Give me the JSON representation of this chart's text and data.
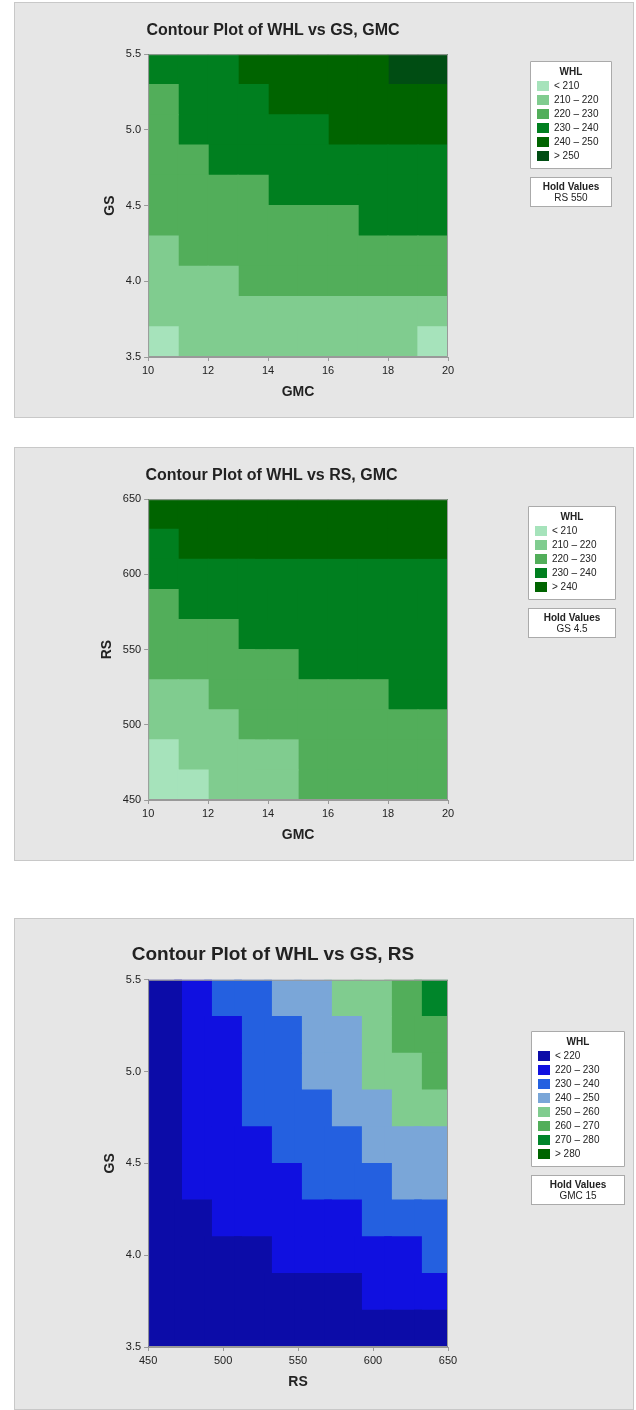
{
  "chart_data": [
    {
      "type": "scatter",
      "marker": "square",
      "title": "Contour Plot of WHL vs GS, GMC",
      "xlabel": "GMC",
      "ylabel": "GS",
      "legend_title": "WHL",
      "legend": "right",
      "grid": false,
      "xlim": [
        10,
        20
      ],
      "xticks": [
        10,
        12,
        14,
        16,
        18,
        20
      ],
      "ylim": [
        3.5,
        5.5
      ],
      "yticks": [
        {
          "value": 3.5,
          "label": "3.5"
        },
        {
          "value": 4,
          "label": "4.0"
        },
        {
          "value": 4.5,
          "label": "4.5"
        },
        {
          "value": 5,
          "label": "5.0"
        },
        {
          "value": 5.5,
          "label": "5.5"
        }
      ],
      "annotations": [
        "Hold Values",
        "RS 550"
      ],
      "series": [
        {
          "name": "< 210",
          "color": "#a6e3bb",
          "x": [
            10.5,
            19.5
          ],
          "values": [
            3.6,
            3.6
          ]
        },
        {
          "name": "210 – 220",
          "color": "#80cc8f",
          "x": [
            10.5,
            10.5,
            11.5,
            12.5,
            10.5,
            11.5,
            12.5,
            13.5,
            14.5,
            15.5,
            16.5,
            17.5,
            18.5,
            19.5,
            11.5,
            12.5,
            13.5,
            14.5,
            15.5,
            16.5,
            17.5,
            18.5
          ],
          "values": [
            4.2,
            4.0,
            4.0,
            4.0,
            3.8,
            3.8,
            3.8,
            3.8,
            3.8,
            3.8,
            3.8,
            3.8,
            3.8,
            3.8,
            3.6,
            3.6,
            3.6,
            3.6,
            3.6,
            3.6,
            3.6,
            3.6
          ]
        },
        {
          "name": "220 – 230",
          "color": "#52ae5a",
          "x": [
            10.5,
            10.5,
            10.5,
            11.5,
            10.5,
            11.5,
            12.5,
            13.5,
            10.5,
            11.5,
            12.5,
            13.5,
            14.5,
            15.5,
            16.5,
            11.5,
            12.5,
            13.5,
            14.5,
            15.5,
            16.5,
            17.5,
            18.5,
            19.5,
            13.5,
            14.5,
            15.5,
            16.5,
            17.5,
            18.5,
            19.5
          ],
          "values": [
            5.2,
            5.0,
            4.8,
            4.8,
            4.6,
            4.6,
            4.6,
            4.6,
            4.4,
            4.4,
            4.4,
            4.4,
            4.4,
            4.4,
            4.4,
            4.2,
            4.2,
            4.2,
            4.2,
            4.2,
            4.2,
            4.2,
            4.2,
            4.2,
            4.0,
            4.0,
            4.0,
            4.0,
            4.0,
            4.0,
            4.0
          ]
        },
        {
          "name": "230 – 240",
          "color": "#007f1f",
          "x": [
            10.5,
            11.5,
            12.5,
            11.5,
            12.5,
            13.5,
            11.5,
            12.5,
            13.5,
            14.5,
            15.5,
            12.5,
            13.5,
            14.5,
            15.5,
            16.5,
            17.5,
            18.5,
            19.5,
            14.5,
            15.5,
            16.5,
            17.5,
            18.5,
            19.5,
            17.5,
            18.5,
            19.5
          ],
          "values": [
            5.4,
            5.4,
            5.4,
            5.2,
            5.2,
            5.2,
            5.0,
            5.0,
            5.0,
            5.0,
            5.0,
            4.8,
            4.8,
            4.8,
            4.8,
            4.8,
            4.8,
            4.8,
            4.8,
            4.6,
            4.6,
            4.6,
            4.6,
            4.6,
            4.6,
            4.4,
            4.4,
            4.4
          ]
        },
        {
          "name": "240 – 250",
          "color": "#006400",
          "x": [
            13.5,
            14.5,
            15.5,
            16.5,
            17.5,
            14.5,
            15.5,
            16.5,
            17.5,
            18.5,
            19.5,
            16.5,
            17.5,
            18.5,
            19.5
          ],
          "values": [
            5.4,
            5.4,
            5.4,
            5.4,
            5.4,
            5.2,
            5.2,
            5.2,
            5.2,
            5.2,
            5.2,
            5.0,
            5.0,
            5.0,
            5.0
          ]
        },
        {
          "name": "> 250",
          "color": "#004d13",
          "x": [
            18.5,
            19.5
          ],
          "values": [
            5.4,
            5.4
          ]
        }
      ]
    },
    {
      "type": "scatter",
      "marker": "square",
      "title": "Contour Plot of WHL vs RS, GMC",
      "xlabel": "GMC",
      "ylabel": "RS",
      "legend_title": "WHL",
      "legend": "right",
      "grid": false,
      "xlim": [
        10,
        20
      ],
      "xticks": [
        10,
        12,
        14,
        16,
        18,
        20
      ],
      "ylim": [
        450,
        650
      ],
      "yticks": [
        450,
        500,
        550,
        600,
        650
      ],
      "annotations": [
        "Hold Values",
        "GS 4.5"
      ],
      "series": [
        {
          "name": "< 210",
          "color": "#a6e3bb",
          "x": [
            10.5,
            10.5,
            11.5
          ],
          "values": [
            480,
            460,
            460
          ]
        },
        {
          "name": "210 – 220",
          "color": "#80cc8f",
          "x": [
            10.5,
            11.5,
            10.5,
            11.5,
            12.5,
            11.5,
            12.5,
            13.5,
            14.5,
            12.5,
            13.5,
            14.5
          ],
          "values": [
            520,
            520,
            500,
            500,
            500,
            480,
            480,
            480,
            480,
            460,
            460,
            460
          ]
        },
        {
          "name": "220 – 230",
          "color": "#52ae5a",
          "x": [
            10.5,
            10.5,
            11.5,
            12.5,
            10.5,
            11.5,
            12.5,
            13.5,
            14.5,
            12.5,
            13.5,
            14.5,
            15.5,
            16.5,
            17.5,
            13.5,
            14.5,
            15.5,
            16.5,
            17.5,
            18.5,
            19.5,
            15.5,
            16.5,
            17.5,
            18.5,
            19.5,
            15.5,
            16.5,
            17.5,
            18.5,
            19.5
          ],
          "values": [
            580,
            560,
            560,
            560,
            540,
            540,
            540,
            540,
            540,
            520,
            520,
            520,
            520,
            520,
            520,
            500,
            500,
            500,
            500,
            500,
            500,
            500,
            480,
            480,
            480,
            480,
            480,
            460,
            460,
            460,
            460,
            460
          ]
        },
        {
          "name": "230 – 240",
          "color": "#007f1f",
          "x": [
            10.5,
            10.5,
            11.5,
            12.5,
            13.5,
            14.5,
            15.5,
            16.5,
            17.5,
            18.5,
            19.5,
            11.5,
            12.5,
            13.5,
            14.5,
            15.5,
            16.5,
            17.5,
            18.5,
            19.5,
            13.5,
            14.5,
            15.5,
            16.5,
            17.5,
            18.5,
            19.5,
            15.5,
            16.5,
            17.5,
            18.5,
            19.5,
            18.5,
            19.5
          ],
          "values": [
            620,
            600,
            600,
            600,
            600,
            600,
            600,
            600,
            600,
            600,
            600,
            580,
            580,
            580,
            580,
            580,
            580,
            580,
            580,
            580,
            560,
            560,
            560,
            560,
            560,
            560,
            560,
            540,
            540,
            540,
            540,
            540,
            520,
            520
          ]
        },
        {
          "name": "> 240",
          "color": "#006400",
          "x": [
            10.5,
            11.5,
            12.5,
            13.5,
            14.5,
            15.5,
            16.5,
            17.5,
            18.5,
            19.5,
            11.5,
            12.5,
            13.5,
            14.5,
            15.5,
            16.5,
            17.5,
            18.5,
            19.5
          ],
          "values": [
            640,
            640,
            640,
            640,
            640,
            640,
            640,
            640,
            640,
            640,
            620,
            620,
            620,
            620,
            620,
            620,
            620,
            620,
            620
          ]
        }
      ]
    },
    {
      "type": "scatter",
      "marker": "square",
      "title": "Contour Plot of WHL vs GS, RS",
      "xlabel": "RS",
      "ylabel": "GS",
      "legend_title": "WHL",
      "legend": "right",
      "grid": false,
      "xlim": [
        450,
        650
      ],
      "xticks": [
        450,
        500,
        550,
        600,
        650
      ],
      "ylim": [
        3.5,
        5.5
      ],
      "yticks": [
        {
          "value": 3.5,
          "label": "3.5"
        },
        {
          "value": 4,
          "label": "4.0"
        },
        {
          "value": 4.5,
          "label": "4.5"
        },
        {
          "value": 5,
          "label": "5.0"
        },
        {
          "value": 5.5,
          "label": "5.5"
        }
      ],
      "annotations": [
        "Hold Values",
        "GMC 15"
      ],
      "series": [
        {
          "name": "< 220",
          "color": "#0c0ca8",
          "x": [
            460,
            460,
            460,
            460,
            460,
            460,
            460,
            480,
            460,
            480,
            500,
            520,
            460,
            480,
            500,
            520,
            540,
            560,
            580,
            460,
            480,
            500,
            520,
            540,
            560,
            580,
            600,
            620,
            640
          ],
          "values": [
            5.4,
            5.2,
            5.0,
            4.8,
            4.6,
            4.4,
            4.2,
            4.2,
            4.0,
            4.0,
            4.0,
            4.0,
            3.8,
            3.8,
            3.8,
            3.8,
            3.8,
            3.8,
            3.8,
            3.6,
            3.6,
            3.6,
            3.6,
            3.6,
            3.6,
            3.6,
            3.6,
            3.6,
            3.6
          ]
        },
        {
          "name": "220 – 230",
          "color": "#1010e0",
          "x": [
            480,
            480,
            500,
            480,
            500,
            480,
            500,
            480,
            500,
            520,
            480,
            500,
            520,
            540,
            500,
            520,
            540,
            560,
            580,
            540,
            560,
            580,
            600,
            620,
            600,
            620,
            640
          ],
          "values": [
            5.4,
            5.2,
            5.2,
            5.0,
            5.0,
            4.8,
            4.8,
            4.6,
            4.6,
            4.6,
            4.4,
            4.4,
            4.4,
            4.4,
            4.2,
            4.2,
            4.2,
            4.2,
            4.2,
            4.0,
            4.0,
            4.0,
            4.0,
            4.0,
            3.8,
            3.8,
            3.8
          ]
        },
        {
          "name": "230 – 240",
          "color": "#2460e0",
          "x": [
            500,
            520,
            520,
            540,
            520,
            540,
            520,
            540,
            560,
            540,
            560,
            580,
            560,
            580,
            600,
            600,
            620,
            640,
            640
          ],
          "values": [
            5.4,
            5.4,
            5.2,
            5.2,
            5.0,
            5.0,
            4.8,
            4.8,
            4.8,
            4.6,
            4.6,
            4.6,
            4.4,
            4.4,
            4.4,
            4.2,
            4.2,
            4.2,
            4.0
          ]
        },
        {
          "name": "240 – 250",
          "color": "#7aa6d8",
          "x": [
            540,
            560,
            560,
            580,
            560,
            580,
            580,
            600,
            600,
            620,
            640,
            620,
            640
          ],
          "values": [
            5.4,
            5.4,
            5.2,
            5.2,
            5.0,
            5.0,
            4.8,
            4.8,
            4.6,
            4.6,
            4.6,
            4.4,
            4.4
          ]
        },
        {
          "name": "250 – 260",
          "color": "#80cc8f",
          "x": [
            580,
            600,
            600,
            600,
            620,
            620,
            640
          ],
          "values": [
            5.4,
            5.4,
            5.2,
            5.0,
            5.0,
            4.8,
            4.8
          ]
        },
        {
          "name": "260 – 270",
          "color": "#52ae5a",
          "x": [
            620,
            620,
            640,
            640
          ],
          "values": [
            5.4,
            5.2,
            5.2,
            5.0
          ]
        },
        {
          "name": "270 – 280",
          "color": "#00852a",
          "x": [
            640
          ],
          "values": [
            5.4
          ]
        },
        {
          "name": "> 280",
          "color": "#006400"
        }
      ]
    }
  ]
}
